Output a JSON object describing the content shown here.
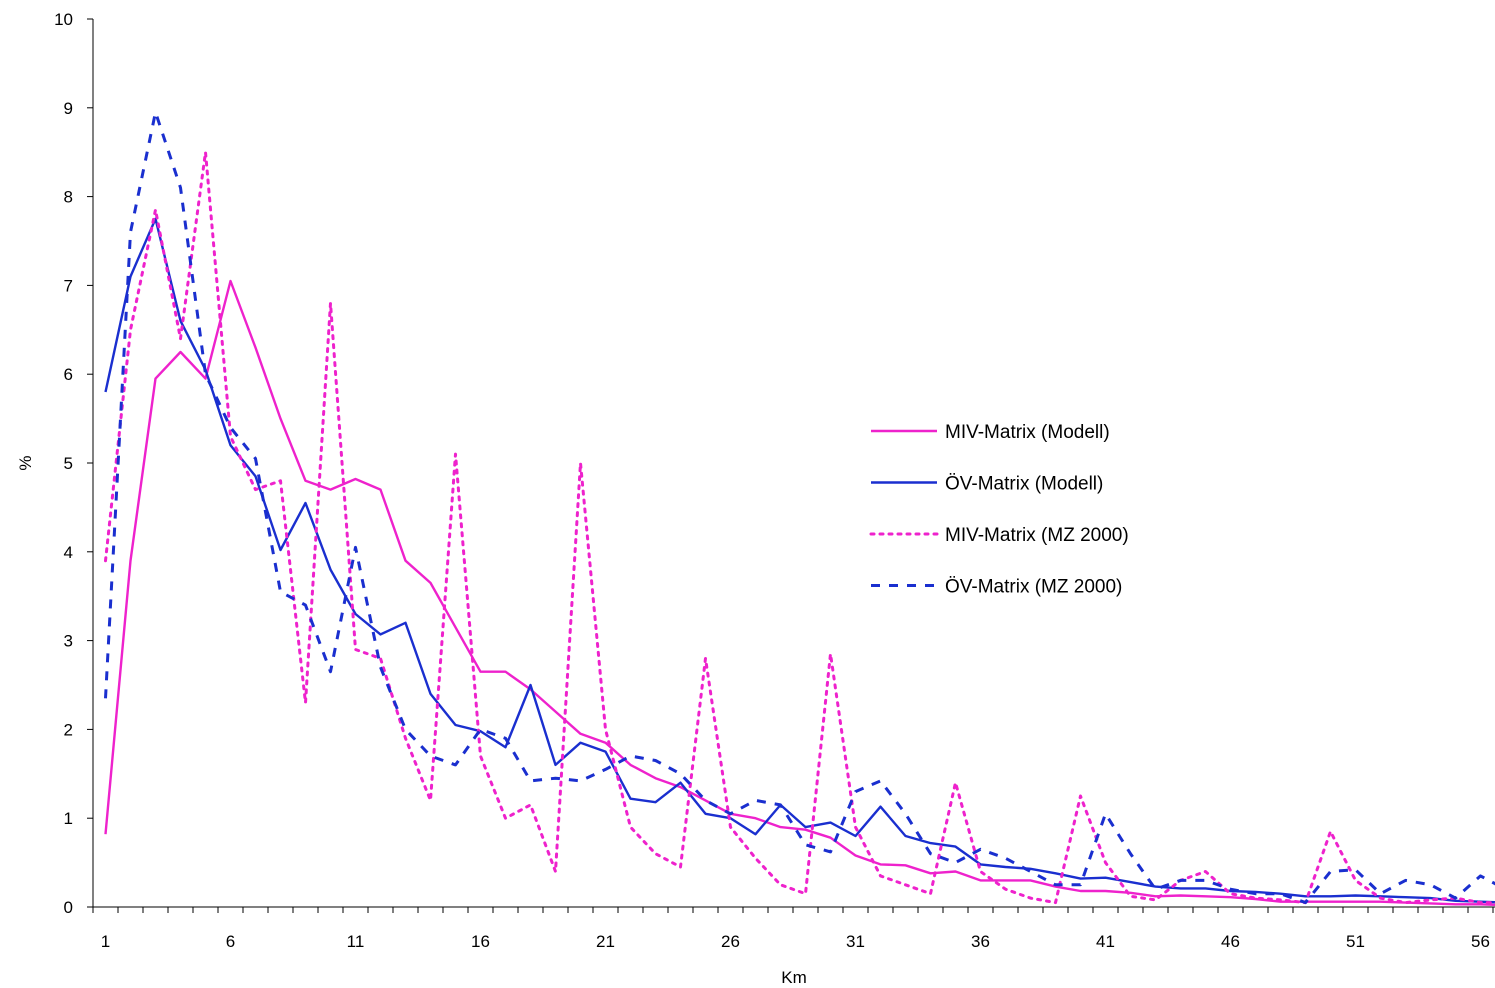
{
  "chart_data": {
    "type": "line",
    "title": "",
    "xlabel": "Km",
    "ylabel": "%",
    "xlim": [
      1,
      56.5
    ],
    "ylim": [
      0,
      10
    ],
    "x_ticks": [
      1,
      6,
      11,
      16,
      21,
      26,
      31,
      36,
      41,
      46,
      51,
      56
    ],
    "y_ticks": [
      0,
      1,
      2,
      3,
      4,
      5,
      6,
      7,
      8,
      9,
      10
    ],
    "grid": false,
    "legend_position": "right",
    "series": [
      {
        "name": "MIV-Matrix (Modell)",
        "color": "#ee22cc",
        "dash": "solid",
        "x": [
          1,
          2,
          3,
          4,
          5,
          6,
          7,
          8,
          9,
          10,
          11,
          12,
          13,
          14,
          15,
          16,
          17,
          18,
          19,
          20,
          21,
          22,
          23,
          24,
          25,
          26,
          27,
          28,
          29,
          30,
          31,
          32,
          33,
          34,
          35,
          36,
          37,
          38,
          39,
          40,
          41,
          42,
          43,
          44,
          45,
          46,
          47,
          48,
          49,
          50,
          51,
          52,
          53,
          54,
          55,
          56,
          57
        ],
        "y": [
          0.82,
          3.9,
          5.95,
          6.25,
          5.95,
          7.05,
          6.3,
          5.5,
          4.8,
          4.7,
          4.82,
          4.7,
          3.9,
          3.65,
          3.15,
          2.65,
          2.65,
          2.45,
          2.2,
          1.95,
          1.85,
          1.6,
          1.45,
          1.35,
          1.2,
          1.05,
          1.0,
          0.9,
          0.87,
          0.78,
          0.58,
          0.48,
          0.47,
          0.38,
          0.4,
          0.3,
          0.3,
          0.3,
          0.23,
          0.18,
          0.18,
          0.16,
          0.12,
          0.13,
          0.12,
          0.11,
          0.09,
          0.06,
          0.06,
          0.06,
          0.06,
          0.06,
          0.05,
          0.04,
          0.03,
          0.03,
          0.02
        ]
      },
      {
        "name": "ÖV-Matrix (Modell)",
        "color": "#1a2fcf",
        "dash": "solid",
        "x": [
          1,
          2,
          3,
          4,
          5,
          6,
          7,
          8,
          9,
          10,
          11,
          12,
          13,
          14,
          15,
          16,
          17,
          18,
          19,
          20,
          21,
          22,
          23,
          24,
          25,
          26,
          27,
          28,
          29,
          30,
          31,
          32,
          33,
          34,
          35,
          36,
          37,
          38,
          39,
          40,
          41,
          42,
          43,
          44,
          45,
          46,
          47,
          48,
          49,
          50,
          51,
          52,
          53,
          54,
          55,
          56,
          57
        ],
        "y": [
          5.8,
          7.1,
          7.75,
          6.6,
          6.05,
          5.2,
          4.85,
          4.02,
          4.55,
          3.8,
          3.3,
          3.07,
          3.2,
          2.4,
          2.05,
          1.98,
          1.8,
          2.5,
          1.6,
          1.85,
          1.75,
          1.22,
          1.18,
          1.4,
          1.05,
          1.0,
          0.82,
          1.15,
          0.9,
          0.95,
          0.8,
          1.13,
          0.8,
          0.72,
          0.68,
          0.48,
          0.45,
          0.43,
          0.38,
          0.32,
          0.33,
          0.28,
          0.23,
          0.21,
          0.21,
          0.18,
          0.17,
          0.15,
          0.12,
          0.12,
          0.13,
          0.12,
          0.11,
          0.1,
          0.07,
          0.06,
          0.05
        ]
      },
      {
        "name": "MIV-Matrix (MZ 2000)",
        "color": "#ee22cc",
        "dash": "dotted",
        "x": [
          1,
          2,
          3,
          4,
          5,
          6,
          7,
          8,
          9,
          10,
          11,
          12,
          13,
          14,
          15,
          16,
          17,
          18,
          19,
          20,
          21,
          22,
          23,
          24,
          25,
          26,
          27,
          28,
          29,
          30,
          31,
          32,
          33,
          34,
          35,
          36,
          37,
          38,
          39,
          40,
          41,
          42,
          43,
          44,
          45,
          46,
          47,
          48,
          49,
          50,
          51,
          52,
          53,
          54,
          55,
          56,
          57
        ],
        "y": [
          3.9,
          6.5,
          7.85,
          6.4,
          8.5,
          5.3,
          4.7,
          4.8,
          2.3,
          6.8,
          2.9,
          2.8,
          1.9,
          1.2,
          5.1,
          1.7,
          1.0,
          1.15,
          0.4,
          5.0,
          2.0,
          0.9,
          0.6,
          0.45,
          2.8,
          0.9,
          0.55,
          0.25,
          0.15,
          2.85,
          0.9,
          0.35,
          0.25,
          0.15,
          1.4,
          0.4,
          0.2,
          0.1,
          0.05,
          1.25,
          0.5,
          0.12,
          0.08,
          0.3,
          0.4,
          0.15,
          0.1,
          0.08,
          0.05,
          0.85,
          0.3,
          0.1,
          0.05,
          0.08,
          0.1,
          0.05,
          0.05
        ]
      },
      {
        "name": "ÖV-Matrix (MZ 2000)",
        "color": "#1a2fcf",
        "dash": "dashed",
        "x": [
          1,
          2,
          3,
          4,
          5,
          6,
          7,
          8,
          9,
          10,
          11,
          12,
          13,
          14,
          15,
          16,
          17,
          18,
          19,
          20,
          21,
          22,
          23,
          24,
          25,
          26,
          27,
          28,
          29,
          30,
          31,
          32,
          33,
          34,
          35,
          36,
          37,
          38,
          39,
          40,
          41,
          42,
          43,
          44,
          45,
          46,
          47,
          48,
          49,
          50,
          51,
          52,
          53,
          54,
          55,
          56,
          57
        ],
        "y": [
          2.35,
          7.6,
          8.95,
          8.1,
          6.0,
          5.4,
          5.05,
          3.55,
          3.4,
          2.65,
          4.05,
          2.7,
          2.0,
          1.7,
          1.6,
          2.0,
          1.9,
          1.42,
          1.45,
          1.42,
          1.55,
          1.7,
          1.65,
          1.5,
          1.2,
          1.05,
          1.2,
          1.15,
          0.7,
          0.62,
          1.3,
          1.42,
          1.05,
          0.6,
          0.5,
          0.65,
          0.55,
          0.4,
          0.25,
          0.25,
          1.05,
          0.6,
          0.2,
          0.3,
          0.3,
          0.2,
          0.15,
          0.15,
          0.05,
          0.4,
          0.42,
          0.15,
          0.3,
          0.25,
          0.1,
          0.35,
          0.2
        ]
      }
    ]
  }
}
